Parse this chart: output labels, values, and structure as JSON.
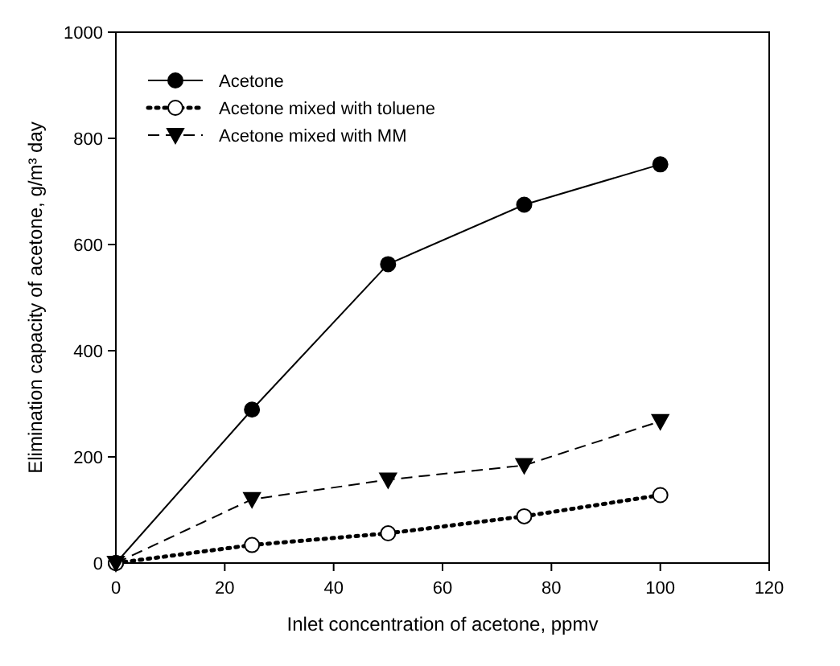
{
  "chart_data": {
    "type": "line",
    "xlabel": "Inlet concentration of acetone, ppmv",
    "ylabel": "Elimination capacity of acetone, g/m³ day",
    "x": [
      0,
      25,
      50,
      75,
      100
    ],
    "xlim": [
      0,
      120
    ],
    "xticks": [
      0,
      20,
      40,
      60,
      80,
      100,
      120
    ],
    "ylim": [
      0,
      1000
    ],
    "yticks": [
      0,
      200,
      400,
      600,
      800,
      1000
    ],
    "grid": false,
    "legend": "top left",
    "series": [
      {
        "name": "Acetone",
        "color": "#000000",
        "values": [
          0,
          289,
          563,
          675,
          751
        ],
        "marker": "circle",
        "line_style": "solid"
      },
      {
        "name": "Acetone mixed with toluene",
        "color": "#000000",
        "values": [
          0,
          34,
          56,
          88,
          128
        ],
        "marker": "circle",
        "line_style": "dotted"
      },
      {
        "name": "Acetone mixed with MM",
        "color": "#000000",
        "values": [
          0,
          120,
          157,
          184,
          267
        ],
        "marker": "triangle",
        "line_style": "dashed"
      }
    ]
  }
}
